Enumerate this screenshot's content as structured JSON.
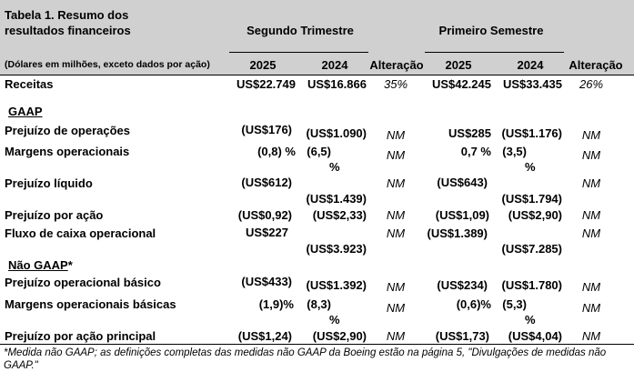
{
  "header": {
    "title": "Tabela 1. Resumo dos resultados financeiros",
    "title_line1": "Tabela 1. Resumo dos",
    "title_line2": "resultados financeiros",
    "units_note": "(Dólares em milhões, exceto dados por ação)",
    "group1": "Segundo Trimestre",
    "group2": "Primeiro Semestre",
    "col_2025": "2025",
    "col_2024": "2024",
    "col_change": "Alteração"
  },
  "rows": {
    "receitas": {
      "label": "Receitas",
      "q25": "US$22.749",
      "q24": "US$16.866",
      "qchg": "35%",
      "s25": "US$42.245",
      "s24": "US$33.435",
      "schg": "26%"
    },
    "gaap_heading": "GAAP",
    "prejuizo_operacoes": {
      "label": "Prejuízo de operações",
      "q25": "(US$176)",
      "q24": "(US$1.090)",
      "qchg": "NM",
      "s25": "US$285",
      "s24": "(US$1.176)",
      "schg": "NM"
    },
    "margens_operacionais": {
      "label": "Margens operacionais",
      "q25": "(0,8) %",
      "q24_a": "(6,5)",
      "q24_b": "%",
      "qchg": "NM",
      "s25": "0,7 %",
      "s24_a": "(3,5)",
      "s24_b": "%",
      "schg": "NM"
    },
    "prejuizo_liquido": {
      "label": "Prejuízo líquido",
      "q25": "(US$612)",
      "q24": "(US$1.439)",
      "qchg": "NM",
      "s25": "(US$643)",
      "s24": "(US$1.794)",
      "schg": "NM"
    },
    "prejuizo_por_acao": {
      "label": "Prejuízo por ação",
      "q25": "(US$0,92)",
      "q24": "(US$2,33)",
      "qchg": "NM",
      "s25": "(US$1,09)",
      "s24": "(US$2,90)",
      "schg": "NM"
    },
    "fluxo_caixa": {
      "label": "Fluxo de caixa operacional",
      "q25": "US$227",
      "q24": "(US$3.923)",
      "qchg": "NM",
      "s25": "(US$1.389)",
      "s24": "(US$7.285)",
      "schg": "NM"
    },
    "nao_gaap_heading": "Não GAAP",
    "nao_gaap_star": "*",
    "prejuizo_op_basico": {
      "label": "Prejuízo operacional básico",
      "q25": "(US$433)",
      "q24": "(US$1.392)",
      "qchg": "NM",
      "s25": "(US$234)",
      "s24": "(US$1.780)",
      "schg": "NM"
    },
    "margens_basicas": {
      "label": "Margens operacionais básicas",
      "q25": "(1,9)%",
      "q24_a": "(8,3)",
      "q24_b": "%",
      "qchg": "NM",
      "s25": "(0,6)%",
      "s24_a": "(5,3)",
      "s24_b": "%",
      "schg": "NM"
    },
    "prejuizo_acao_principal": {
      "label": "Prejuízo por ação principal",
      "q25": "(US$1,24)",
      "q24": "(US$2,90)",
      "qchg": "NM",
      "s25": "(US$1,73)",
      "s24": "(US$4,04)",
      "schg": "NM"
    }
  },
  "footnote": "*Medida não GAAP; as definições completas das medidas não GAAP da Boeing estão na página 5, \"Divulgações de medidas não GAAP.\""
}
